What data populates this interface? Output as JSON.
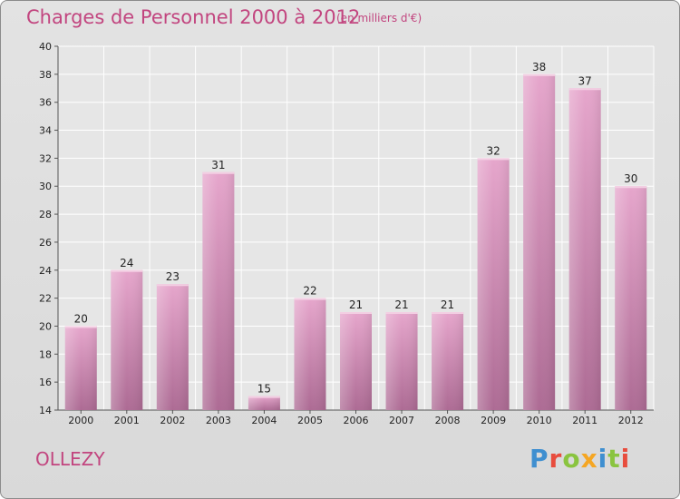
{
  "chart_data": {
    "type": "bar",
    "title": "Charges de Personnel 2000 à 2012",
    "subtitle": "(en milliers d'€)",
    "categories": [
      "2000",
      "2001",
      "2002",
      "2003",
      "2004",
      "2005",
      "2006",
      "2007",
      "2008",
      "2009",
      "2010",
      "2011",
      "2012"
    ],
    "values": [
      20,
      24,
      23,
      31,
      15,
      22,
      21,
      21,
      21,
      32,
      38,
      37,
      30
    ],
    "ylim": [
      14,
      40
    ],
    "yticks": [
      14,
      16,
      18,
      20,
      22,
      24,
      26,
      28,
      30,
      32,
      34,
      36,
      38,
      40
    ],
    "grid": true,
    "bar_color": "#d98bb8"
  },
  "footer": {
    "commune": "OLLEZY",
    "logo_letters": [
      {
        "ch": "P",
        "color": "#3f8fd0"
      },
      {
        "ch": "r",
        "color": "#e84c3d"
      },
      {
        "ch": "o",
        "color": "#8ac43f"
      },
      {
        "ch": "x",
        "color": "#f5a623"
      },
      {
        "ch": "i",
        "color": "#3f8fd0"
      },
      {
        "ch": "t",
        "color": "#8ac43f"
      },
      {
        "ch": "i",
        "color": "#e84c3d"
      }
    ]
  }
}
